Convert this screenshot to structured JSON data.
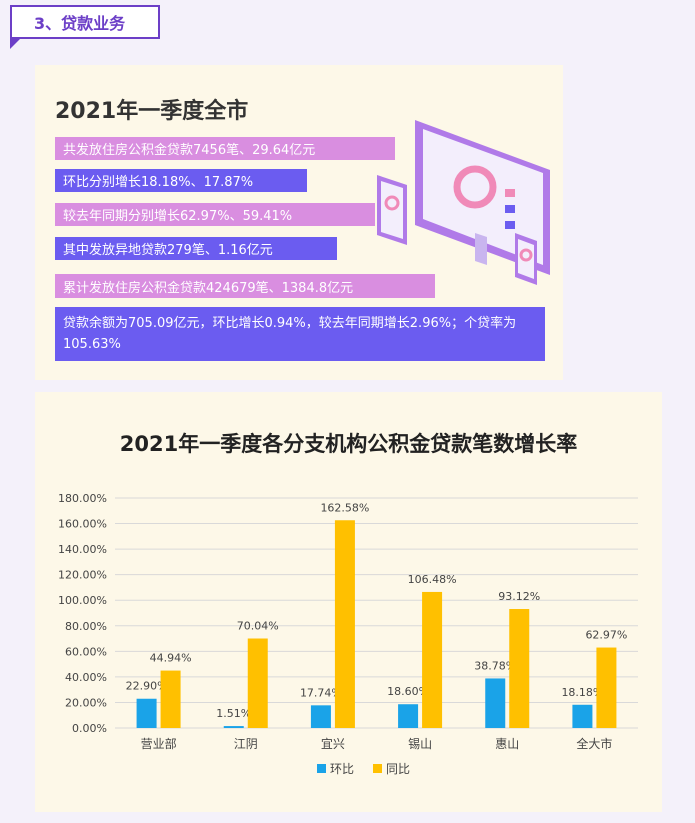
{
  "section": {
    "label": "3、贷款业务"
  },
  "summary": {
    "title": "2021年一季度全市",
    "lines": [
      "共发放住房公积金贷款7456笔、29.64亿元",
      "环比分别增长18.18%、17.87%",
      "较去年同期分别增长62.97%、59.41%",
      "其中发放异地贷款279笔、1.16亿元",
      "累计发放住房公积金贷款424679笔、1384.8亿元",
      "贷款余额为705.09亿元，环比增长0.94%，较去年同期增长2.96%；个贷率为105.63%"
    ]
  },
  "colors": {
    "pink_bar": "#d98ee0",
    "violet_bar": "#6b5cf0",
    "series_mom": "#1aa3e8",
    "series_yoy": "#ffc000",
    "accent": "#6c3fc7"
  },
  "chart_data": {
    "type": "bar",
    "title": "2021年一季度各分支机构公积金贷款笔数增长率",
    "categories": [
      "营业部",
      "江阴",
      "宜兴",
      "锡山",
      "惠山",
      "全大市"
    ],
    "series": [
      {
        "name": "环比",
        "values": [
          22.9,
          1.51,
          17.74,
          18.6,
          38.78,
          18.18
        ]
      },
      {
        "name": "同比",
        "values": [
          44.94,
          70.04,
          162.58,
          106.48,
          93.12,
          62.97
        ]
      }
    ],
    "data_labels": [
      [
        "22.90%",
        "1.51%",
        "17.74%",
        "18.60%",
        "38.78%",
        "18.18%"
      ],
      [
        "44.94%",
        "70.04%",
        "162.58%",
        "106.48%",
        "93.12%",
        "62.97%"
      ]
    ],
    "y_ticks": [
      "0.00%",
      "20.00%",
      "40.00%",
      "60.00%",
      "80.00%",
      "100.00%",
      "120.00%",
      "140.00%",
      "160.00%",
      "180.00%"
    ],
    "ylim": [
      0,
      180
    ],
    "grid": true,
    "legend_position": "bottom"
  }
}
